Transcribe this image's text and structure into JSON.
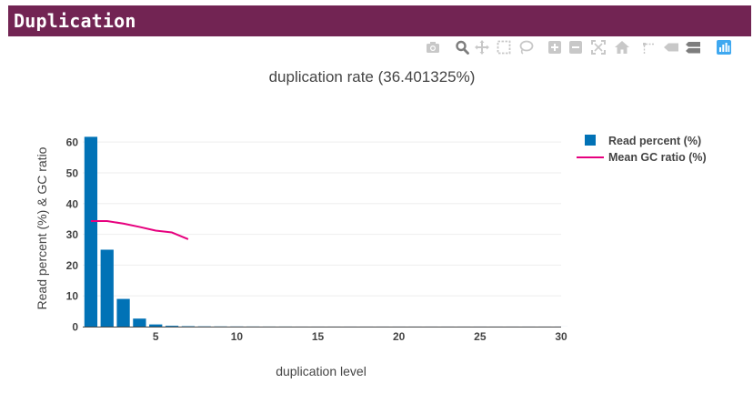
{
  "section": {
    "title": "Duplication"
  },
  "modebar": {
    "buttons": [
      "camera-icon",
      "zoom-icon",
      "pan-icon",
      "box-select-icon",
      "lasso-select-icon",
      "zoom-in-icon",
      "zoom-out-icon",
      "autoscale-icon",
      "reset-axes-icon",
      "spike-lines-icon",
      "hover-closest-icon",
      "hover-compare-icon",
      "plotly-logo-icon"
    ],
    "icon_color": "#c8c8c8",
    "active_color": "#7d7d7d",
    "logo_color": "#3fa8f0"
  },
  "chart_data": {
    "type": "bar",
    "title": "duplication rate (36.401325%)",
    "xlabel": "duplication level",
    "ylabel": "Read percent (%) & GC ratio",
    "xlim": [
      0.5,
      30
    ],
    "ylim": [
      0,
      63
    ],
    "xticks": [
      5,
      10,
      15,
      20,
      25,
      30
    ],
    "yticks": [
      0,
      10,
      20,
      30,
      40,
      50,
      60
    ],
    "grid": true,
    "legend_position": "top-right",
    "series": [
      {
        "name": "Read percent (%)",
        "type": "bar",
        "color": "#0172b6",
        "x": [
          1,
          2,
          3,
          4,
          5,
          6,
          7,
          8,
          9,
          10,
          11,
          12,
          13,
          14,
          15,
          16,
          17,
          18,
          19,
          20,
          21,
          22,
          23,
          24,
          25,
          26,
          27,
          28,
          29,
          30
        ],
        "values": [
          61.7,
          25.0,
          9.0,
          2.6,
          0.7,
          0.25,
          0.12,
          0.07,
          0.05,
          0.04,
          0.03,
          0.02,
          0.02,
          0.01,
          0.01,
          0.01,
          0.01,
          0.01,
          0.01,
          0.01,
          0.01,
          0.01,
          0.01,
          0.01,
          0.01,
          0.01,
          0.01,
          0.01,
          0.01,
          0.01
        ]
      },
      {
        "name": "Mean GC ratio (%)",
        "type": "line",
        "color": "#e6007e",
        "x": [
          1,
          2,
          3,
          4,
          5,
          6,
          7
        ],
        "values": [
          34.3,
          34.3,
          33.5,
          32.4,
          31.2,
          30.6,
          28.4
        ]
      }
    ]
  }
}
